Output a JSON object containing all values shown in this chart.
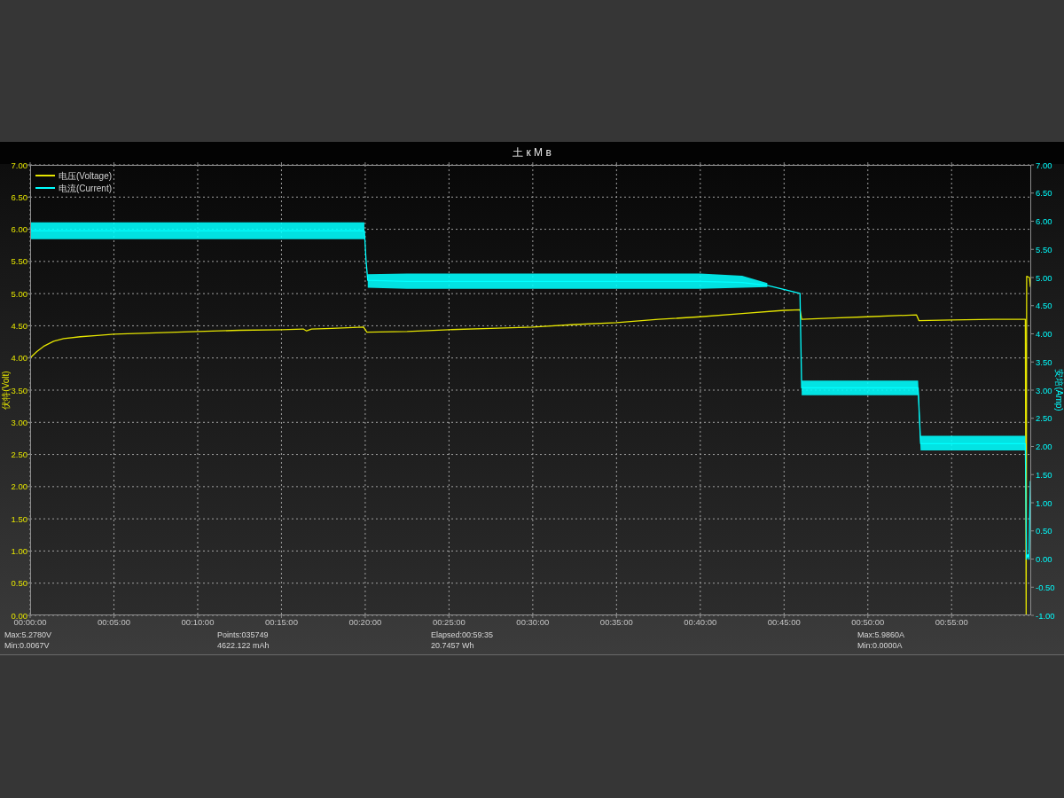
{
  "chart_data": {
    "type": "line",
    "title": "土 к M в",
    "ylabel": "伏特(Volt)",
    "y2label": "安培(Amp)",
    "xlim": [
      0,
      59.75
    ],
    "xticks": [
      {
        "value": 0,
        "label": "00:00:00"
      },
      {
        "value": 5,
        "label": "00:05:00"
      },
      {
        "value": 10,
        "label": "00:10:00"
      },
      {
        "value": 15,
        "label": "00:15:00"
      },
      {
        "value": 20,
        "label": "00:20:00"
      },
      {
        "value": 25,
        "label": "00:25:00"
      },
      {
        "value": 30,
        "label": "00:30:00"
      },
      {
        "value": 35,
        "label": "00:35:00"
      },
      {
        "value": 40,
        "label": "00:40:00"
      },
      {
        "value": 45,
        "label": "00:45:00"
      },
      {
        "value": 50,
        "label": "00:50:00"
      },
      {
        "value": 55,
        "label": "00:55:00"
      }
    ],
    "ylim": [
      0,
      7
    ],
    "yticks": [
      {
        "value": 0,
        "label": "0.00"
      },
      {
        "value": 0.5,
        "label": "0.50"
      },
      {
        "value": 1,
        "label": "1.00"
      },
      {
        "value": 1.5,
        "label": "1.50"
      },
      {
        "value": 2,
        "label": "2.00"
      },
      {
        "value": 2.5,
        "label": "2.50"
      },
      {
        "value": 3,
        "label": "3.00"
      },
      {
        "value": 3.5,
        "label": "3.50"
      },
      {
        "value": 4,
        "label": "4.00"
      },
      {
        "value": 4.5,
        "label": "4.50"
      },
      {
        "value": 5,
        "label": "5.00"
      },
      {
        "value": 5.5,
        "label": "5.50"
      },
      {
        "value": 6,
        "label": "6.00"
      },
      {
        "value": 6.5,
        "label": "6.50"
      },
      {
        "value": 7,
        "label": "7.00"
      }
    ],
    "y2lim": [
      -1,
      7
    ],
    "y2ticks": [
      {
        "value": -1,
        "label": "-1.00"
      },
      {
        "value": -0.5,
        "label": "-0.50"
      },
      {
        "value": 0,
        "label": "0.00"
      },
      {
        "value": 0.5,
        "label": "0.50"
      },
      {
        "value": 1,
        "label": "1.00"
      },
      {
        "value": 1.5,
        "label": "1.50"
      },
      {
        "value": 2,
        "label": "2.00"
      },
      {
        "value": 2.5,
        "label": "2.50"
      },
      {
        "value": 3,
        "label": "3.00"
      },
      {
        "value": 3.5,
        "label": "3.50"
      },
      {
        "value": 4,
        "label": "4.00"
      },
      {
        "value": 4.5,
        "label": "4.50"
      },
      {
        "value": 5,
        "label": "5.00"
      },
      {
        "value": 5.5,
        "label": "5.50"
      },
      {
        "value": 6,
        "label": "6.00"
      },
      {
        "value": 6.5,
        "label": "6.50"
      },
      {
        "value": 7,
        "label": "7.00"
      }
    ],
    "grid": true,
    "legend": "top left",
    "series": [
      {
        "name": "电压(Voltage)",
        "color": "#e5e500",
        "x": [
          0,
          0.4,
          0.8,
          1.4,
          2,
          3,
          4,
          5,
          7.5,
          10,
          12.5,
          15,
          16.3,
          16.5,
          16.8,
          18,
          19.9,
          20.1,
          22.5,
          25,
          27.5,
          30,
          32.5,
          35,
          37.5,
          40,
          42.5,
          45,
          45.95,
          46.05,
          48,
          50,
          52.9,
          53.05,
          55,
          57.5,
          59.4,
          59.45,
          59.48,
          59.65,
          59.7
        ],
        "values": [
          4.0,
          4.1,
          4.18,
          4.26,
          4.3,
          4.33,
          4.35,
          4.37,
          4.39,
          4.41,
          4.43,
          4.44,
          4.45,
          4.42,
          4.45,
          4.46,
          4.48,
          4.4,
          4.41,
          4.44,
          4.46,
          4.48,
          4.52,
          4.55,
          4.6,
          4.64,
          4.69,
          4.74,
          4.75,
          4.6,
          4.62,
          4.64,
          4.67,
          4.58,
          4.59,
          4.6,
          4.6,
          0.01,
          5.27,
          5.25,
          5.11
        ]
      },
      {
        "name": "电流(Current)",
        "color": "#00ffff",
        "axis": "y2",
        "x": [
          0,
          2.5,
          5,
          7.5,
          10,
          12.5,
          15,
          17.5,
          19.95,
          20.05,
          20.15,
          22.5,
          25,
          27.5,
          30,
          32.5,
          35,
          37.5,
          40,
          42.5,
          44,
          45.95,
          46.05,
          48,
          50,
          52,
          53.0,
          53.15,
          55,
          57.5,
          59.4,
          59.47,
          59.55,
          59.62,
          59.7
        ],
        "values": [
          5.83,
          5.83,
          5.83,
          5.83,
          5.83,
          5.83,
          5.83,
          5.83,
          5.83,
          5.3,
          4.95,
          4.93,
          4.93,
          4.93,
          4.93,
          4.93,
          4.93,
          4.93,
          4.93,
          4.91,
          4.86,
          4.72,
          3.04,
          3.04,
          3.04,
          3.04,
          3.04,
          2.05,
          2.05,
          2.05,
          2.05,
          0.0,
          0.08,
          0.0,
          1.38
        ],
        "lower": [
          5.68,
          5.68,
          5.68,
          5.68,
          5.68,
          5.68,
          5.68,
          5.68,
          5.68,
          null,
          4.82,
          4.8,
          4.8,
          4.8,
          4.8,
          4.8,
          4.8,
          4.8,
          4.8,
          4.82,
          4.83,
          null,
          2.91,
          2.91,
          2.91,
          2.91,
          2.91,
          1.93,
          1.93,
          1.93,
          1.93,
          null,
          null,
          null,
          null
        ],
        "upper": [
          5.98,
          5.98,
          5.98,
          5.98,
          5.98,
          5.98,
          5.98,
          5.98,
          5.98,
          null,
          5.06,
          5.07,
          5.07,
          5.07,
          5.07,
          5.07,
          5.07,
          5.07,
          5.07,
          5.03,
          4.9,
          null,
          3.17,
          3.17,
          3.17,
          3.17,
          3.17,
          2.19,
          2.19,
          2.19,
          2.19,
          null,
          null,
          null,
          null
        ]
      }
    ],
    "annotations": [
      "Max:5.2780V",
      "Points:035749",
      "Elapsed:00:59:35",
      "Max:5.9860A",
      "Min:0.0067V",
      "4622.122 mAh",
      "20.7457 Wh",
      "Min:0.0000A"
    ]
  }
}
